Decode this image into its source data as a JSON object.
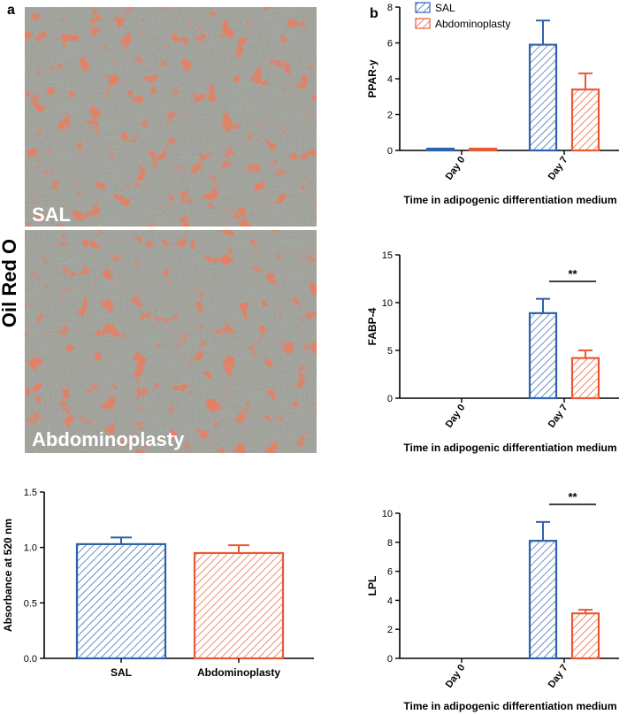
{
  "panels": {
    "a": "a",
    "b": "b"
  },
  "stain_label": "Oil Red O",
  "photos": [
    {
      "label": "SAL"
    },
    {
      "label": "Abdominoplasty"
    }
  ],
  "colors": {
    "SAL": "#2f62ad",
    "Abdominoplasty": "#e85a36",
    "photo_bg": "#9a9a92",
    "photo_green": "#4e6b57",
    "photo_red": "#c23a22"
  },
  "legend": [
    "SAL",
    "Abdominoplasty"
  ],
  "chart_data": [
    {
      "id": "absorbance",
      "type": "bar",
      "categories": [
        "SAL",
        "Abdominoplasty"
      ],
      "values": [
        1.03,
        0.95
      ],
      "errors": [
        0.06,
        0.07
      ],
      "ylabel": "Absorbance at 520 nm",
      "xlabel": "",
      "ylim": [
        0,
        1.5
      ],
      "yticks": [
        "0.0",
        "0.5",
        "1.0",
        "1.5"
      ]
    },
    {
      "id": "pparg",
      "type": "bar",
      "categories": [
        "Day 0",
        "Day 7"
      ],
      "series": [
        {
          "name": "SAL",
          "values": [
            0.1,
            5.9
          ],
          "errors": [
            0,
            1.35
          ]
        },
        {
          "name": "Abdominoplasty",
          "values": [
            0.1,
            3.4
          ],
          "errors": [
            0,
            0.9
          ]
        }
      ],
      "ylabel": "PPAR-y",
      "xlabel": "Time in adipogenic differentiation medium",
      "ylim": [
        0,
        8
      ],
      "yticks": [
        "0",
        "2",
        "4",
        "6",
        "8"
      ]
    },
    {
      "id": "fabp4",
      "type": "bar",
      "categories": [
        "Day 0",
        "Day 7"
      ],
      "series": [
        {
          "name": "SAL",
          "values": [
            0,
            8.9
          ],
          "errors": [
            0,
            1.5
          ]
        },
        {
          "name": "Abdominoplasty",
          "values": [
            0,
            4.2
          ],
          "errors": [
            0,
            0.8
          ]
        }
      ],
      "ylabel": "FABP-4",
      "xlabel": "Time in adipogenic differentiation medium",
      "ylim": [
        0,
        15
      ],
      "yticks": [
        "0",
        "5",
        "10",
        "15"
      ],
      "significance": "**"
    },
    {
      "id": "lpl",
      "type": "bar",
      "categories": [
        "Day 0",
        "Day 7"
      ],
      "series": [
        {
          "name": "SAL",
          "values": [
            0,
            8.1
          ],
          "errors": [
            0,
            1.3
          ]
        },
        {
          "name": "Abdominoplasty",
          "values": [
            0,
            3.1
          ],
          "errors": [
            0,
            0.25
          ]
        }
      ],
      "ylabel": "LPL",
      "xlabel": "Time in adipogenic differentiation medium",
      "ylim": [
        0,
        10
      ],
      "yticks": [
        "0",
        "2",
        "4",
        "6",
        "8",
        "10"
      ],
      "significance": "**"
    }
  ]
}
